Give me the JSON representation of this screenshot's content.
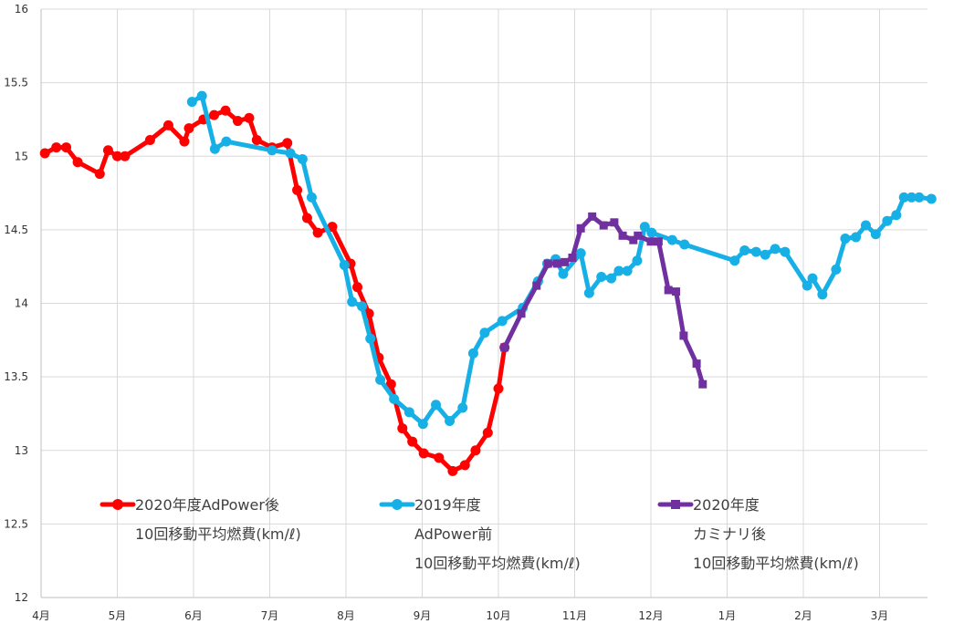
{
  "chart_data": {
    "type": "line",
    "x_ticks": [
      "4月",
      "5月",
      "6月",
      "7月",
      "8月",
      "9月",
      "10月",
      "11月",
      "12月",
      "1月",
      "2月",
      "3月"
    ],
    "y_ticks": [
      "12",
      "12.5",
      "13",
      "13.5",
      "14",
      "14.5",
      "15",
      "15.5",
      "16"
    ],
    "xlim": [
      0,
      11.85
    ],
    "ylim": [
      12,
      16
    ],
    "grid": "both",
    "legend_position": "bottom-inside",
    "series": [
      {
        "name": [
          "2020年度AdPower後",
          "10回移動平均燃費(km/ℓ)"
        ],
        "color": "#ff0000",
        "marker": "circle",
        "x": [
          0.05,
          0.2,
          0.33,
          0.48,
          0.77,
          0.88,
          1.0,
          1.1,
          1.43,
          1.67,
          1.88,
          1.94,
          2.13,
          2.27,
          2.42,
          2.58,
          2.73,
          2.83,
          3.03,
          3.23,
          3.36,
          3.49,
          3.63,
          3.82,
          4.06,
          4.15,
          4.3,
          4.43,
          4.59,
          4.74,
          4.87,
          5.02,
          5.22,
          5.4,
          5.56,
          5.7,
          5.86,
          6.0,
          6.08
        ],
        "y": [
          15.02,
          15.06,
          15.06,
          14.96,
          14.88,
          15.04,
          15.0,
          15.0,
          15.11,
          15.21,
          15.1,
          15.19,
          15.25,
          15.28,
          15.31,
          15.24,
          15.26,
          15.11,
          15.06,
          15.09,
          14.77,
          14.58,
          14.48,
          14.52,
          14.27,
          14.11,
          13.93,
          13.63,
          13.45,
          13.15,
          13.06,
          12.98,
          12.95,
          12.86,
          12.9,
          13.0,
          13.12,
          13.42,
          13.7
        ]
      },
      {
        "name": [
          "2019年度",
          "AdPower前",
          "10回移動平均燃費(km/ℓ)"
        ],
        "color": "#17b0e6",
        "marker": "circle",
        "x": [
          1.98,
          2.11,
          2.28,
          2.43,
          3.03,
          3.27,
          3.43,
          3.55,
          3.98,
          4.08,
          4.21,
          4.32,
          4.45,
          4.63,
          4.83,
          5.01,
          5.18,
          5.36,
          5.53,
          5.67,
          5.82,
          6.05,
          6.32,
          6.52,
          6.64,
          6.75,
          6.85,
          7.08,
          7.19,
          7.35,
          7.48,
          7.58,
          7.69,
          7.82,
          7.92,
          8.01,
          8.28,
          8.44,
          9.1,
          9.23,
          9.38,
          9.5,
          9.63,
          9.76,
          10.05,
          10.12,
          10.25,
          10.43,
          10.55,
          10.69,
          10.82,
          10.95,
          11.1,
          11.22,
          11.32,
          11.42,
          11.52,
          11.68
        ],
        "y": [
          15.37,
          15.41,
          15.05,
          15.1,
          15.04,
          15.02,
          14.98,
          14.72,
          14.26,
          14.01,
          13.98,
          13.76,
          13.48,
          13.35,
          13.26,
          13.18,
          13.31,
          13.2,
          13.29,
          13.66,
          13.8,
          13.88,
          13.97,
          14.15,
          14.27,
          14.3,
          14.2,
          14.34,
          14.07,
          14.18,
          14.17,
          14.22,
          14.22,
          14.29,
          14.52,
          14.48,
          14.43,
          14.4,
          14.29,
          14.36,
          14.35,
          14.33,
          14.37,
          14.35,
          14.12,
          14.17,
          14.06,
          14.23,
          14.44,
          14.45,
          14.53,
          14.47,
          14.56,
          14.6,
          14.72,
          14.72,
          14.72,
          14.71
        ]
      },
      {
        "name": [
          "2020年度",
          "カミナリ後",
          "10回移動平均燃費(km/ℓ)"
        ],
        "color": "#7030a0",
        "marker": "square",
        "x": [
          6.08,
          6.3,
          6.5,
          6.65,
          6.77,
          6.87,
          6.97,
          7.08,
          7.23,
          7.38,
          7.52,
          7.63,
          7.77,
          7.83,
          8.0,
          8.1,
          8.23,
          8.33,
          8.43,
          8.6,
          8.68
        ],
        "y": [
          13.7,
          13.93,
          14.12,
          14.27,
          14.27,
          14.28,
          14.31,
          14.51,
          14.59,
          14.53,
          14.55,
          14.46,
          14.43,
          14.46,
          14.42,
          14.42,
          14.09,
          14.08,
          13.78,
          13.59,
          13.45
        ]
      }
    ]
  }
}
